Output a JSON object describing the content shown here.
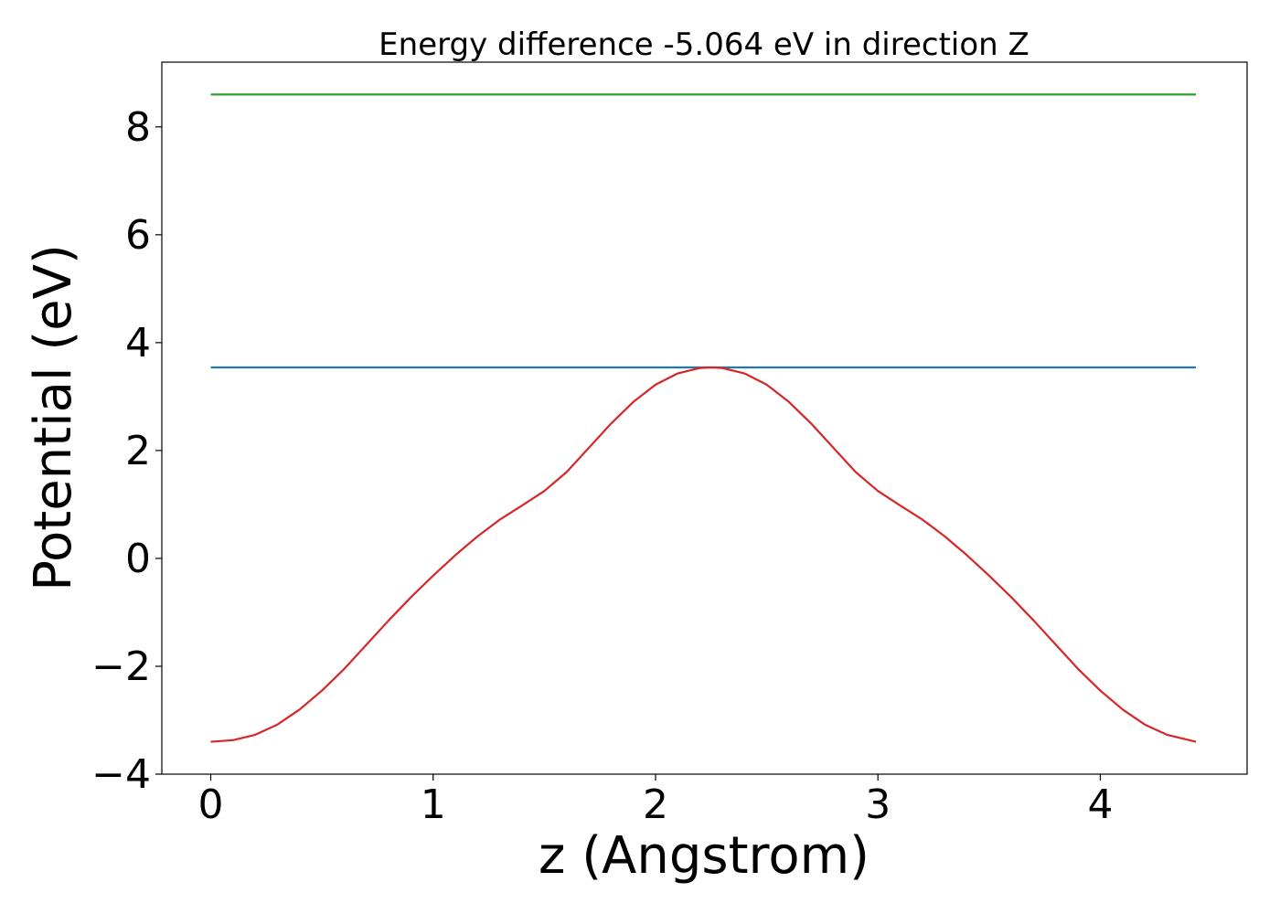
{
  "chart_data": {
    "type": "line",
    "title": "Energy difference -5.064 eV in direction Z",
    "xlabel": "z (Angstrom)",
    "ylabel": "Potential (eV)",
    "xlim": [
      -0.22,
      4.66
    ],
    "ylim": [
      -4.0,
      9.2
    ],
    "x_ticks": [
      0,
      1,
      2,
      3,
      4
    ],
    "x_tick_labels": [
      "0",
      "1",
      "2",
      "3",
      "4"
    ],
    "y_ticks": [
      -4,
      -2,
      0,
      2,
      4,
      6,
      8
    ],
    "y_tick_labels": [
      "−4",
      "−2",
      "0",
      "2",
      "4",
      "6",
      "8"
    ],
    "grid": false,
    "series": [
      {
        "color": "#2ca02c",
        "x": [
          0,
          4.43
        ],
        "y": [
          8.6,
          8.6
        ]
      },
      {
        "color": "#1f77b4",
        "x": [
          0,
          4.43
        ],
        "y": [
          3.54,
          3.54
        ]
      },
      {
        "color": "#d62728",
        "x": [
          0.0,
          0.1,
          0.2,
          0.3,
          0.4,
          0.5,
          0.6,
          0.7,
          0.8,
          0.9,
          1.0,
          1.1,
          1.2,
          1.3,
          1.4,
          1.5,
          1.6,
          1.7,
          1.8,
          1.9,
          2.0,
          2.1,
          2.2,
          2.25,
          2.3,
          2.4,
          2.5,
          2.6,
          2.7,
          2.8,
          2.9,
          3.0,
          3.1,
          3.2,
          3.3,
          3.4,
          3.5,
          3.6,
          3.7,
          3.8,
          3.9,
          4.0,
          4.1,
          4.2,
          4.3,
          4.43
        ],
        "y": [
          -3.4,
          -3.37,
          -3.27,
          -3.08,
          -2.8,
          -2.45,
          -2.05,
          -1.6,
          -1.15,
          -0.72,
          -0.32,
          0.06,
          0.41,
          0.72,
          0.98,
          1.25,
          1.6,
          2.05,
          2.5,
          2.9,
          3.22,
          3.43,
          3.53,
          3.54,
          3.53,
          3.43,
          3.22,
          2.9,
          2.5,
          2.05,
          1.6,
          1.25,
          0.98,
          0.72,
          0.41,
          0.06,
          -0.32,
          -0.72,
          -1.15,
          -1.6,
          -2.05,
          -2.45,
          -2.8,
          -3.08,
          -3.27,
          -3.4
        ]
      }
    ]
  }
}
